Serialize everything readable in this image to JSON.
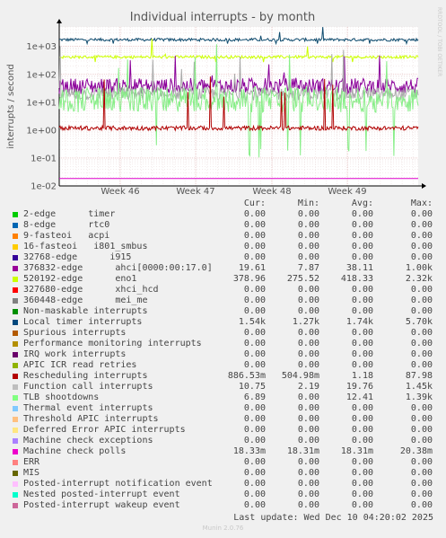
{
  "chart_data": {
    "type": "line",
    "title": "Individual interrupts - by month",
    "ylabel": "interrupts / second",
    "yscale": "log",
    "ylim": [
      0.01,
      5000
    ],
    "ytick_labels": [
      "1e+03",
      "1e+02",
      "1e+01",
      "1e+00",
      "1e-01",
      "1e-02"
    ],
    "yticks": [
      1000,
      100,
      10,
      1,
      0.1,
      0.01
    ],
    "xtick_labels": [
      "Week 46",
      "Week 47",
      "Week 48",
      "Week 49"
    ],
    "grid": true,
    "side_label": "RRDTOOL / TOBI OETIKER",
    "series": [
      {
        "name": "Local timer interrupts",
        "color": "#0f4b6e",
        "level": 1740,
        "min": 1270,
        "max": 5700,
        "noise": 0.04
      },
      {
        "name": "520192-edge      eno1",
        "color": "#ccff00",
        "level": 418,
        "min": 275,
        "max": 2320,
        "noise": 0.04
      },
      {
        "name": "376832-edge      ahci[0000:00:17.0]",
        "color": "#8a0099",
        "level": 38,
        "min": 7.87,
        "max": 1000,
        "noise": 0.22
      },
      {
        "name": "Function call interrupts",
        "color": "#aaaaaa",
        "level": 19.8,
        "min": 2.19,
        "max": 1450,
        "noise": 0.18
      },
      {
        "name": "TLB shootdowns",
        "color": "#88ee88",
        "level": 12.4,
        "min": 0.1,
        "max": 1390,
        "noise": 0.35
      },
      {
        "name": "Rescheduling interrupts",
        "color": "#b00000",
        "level": 1.18,
        "min": 0.505,
        "max": 88,
        "noise": 0.06
      },
      {
        "name": "Machine check polls",
        "color": "#dd00cc",
        "level": 0.0183,
        "min": 0.0183,
        "max": 0.0204,
        "noise": 0.0
      }
    ],
    "legend_headers": [
      "Cur:",
      "Min:",
      "Avg:",
      "Max:"
    ],
    "legend": [
      {
        "color": "#00cc00",
        "name": "2-edge      timer",
        "cur": "0.00",
        "min": "0.00",
        "avg": "0.00",
        "max": "0.00"
      },
      {
        "color": "#0066b3",
        "name": "8-edge      rtc0",
        "cur": "0.00",
        "min": "0.00",
        "avg": "0.00",
        "max": "0.00"
      },
      {
        "color": "#ff8000",
        "name": "9-fasteoi   acpi",
        "cur": "0.00",
        "min": "0.00",
        "avg": "0.00",
        "max": "0.00"
      },
      {
        "color": "#ffcc00",
        "name": "16-fasteoi   i801_smbus",
        "cur": "0.00",
        "min": "0.00",
        "avg": "0.00",
        "max": "0.00"
      },
      {
        "color": "#330099",
        "name": "32768-edge      i915",
        "cur": "0.00",
        "min": "0.00",
        "avg": "0.00",
        "max": "0.00"
      },
      {
        "color": "#990099",
        "name": "376832-edge      ahci[0000:00:17.0]",
        "cur": "19.61",
        "min": "7.87",
        "avg": "38.11",
        "max": "1.00k"
      },
      {
        "color": "#ccff00",
        "name": "520192-edge      eno1",
        "cur": "378.96",
        "min": "275.52",
        "avg": "418.33",
        "max": "2.32k"
      },
      {
        "color": "#ff0000",
        "name": "327680-edge      xhci_hcd",
        "cur": "0.00",
        "min": "0.00",
        "avg": "0.00",
        "max": "0.00"
      },
      {
        "color": "#808080",
        "name": "360448-edge      mei_me",
        "cur": "0.00",
        "min": "0.00",
        "avg": "0.00",
        "max": "0.00"
      },
      {
        "color": "#008f00",
        "name": "Non-maskable interrupts",
        "cur": "0.00",
        "min": "0.00",
        "avg": "0.00",
        "max": "0.00"
      },
      {
        "color": "#00487d",
        "name": "Local timer interrupts",
        "cur": "1.54k",
        "min": "1.27k",
        "avg": "1.74k",
        "max": "5.70k"
      },
      {
        "color": "#b35a00",
        "name": "Spurious interrupts",
        "cur": "0.00",
        "min": "0.00",
        "avg": "0.00",
        "max": "0.00"
      },
      {
        "color": "#b38f00",
        "name": "Performance monitoring interrupts",
        "cur": "0.00",
        "min": "0.00",
        "avg": "0.00",
        "max": "0.00"
      },
      {
        "color": "#6b006b",
        "name": "IRQ work interrupts",
        "cur": "0.00",
        "min": "0.00",
        "avg": "0.00",
        "max": "0.00"
      },
      {
        "color": "#8fb300",
        "name": "APIC ICR read retries",
        "cur": "0.00",
        "min": "0.00",
        "avg": "0.00",
        "max": "0.00"
      },
      {
        "color": "#b30000",
        "name": "Rescheduling interrupts",
        "cur": "886.53m",
        "min": "504.98m",
        "avg": "1.18",
        "max": "87.98"
      },
      {
        "color": "#bebebe",
        "name": "Function call interrupts",
        "cur": "10.75",
        "min": "2.19",
        "avg": "19.76",
        "max": "1.45k"
      },
      {
        "color": "#80ff80",
        "name": "TLB shootdowns",
        "cur": "6.89",
        "min": "0.00",
        "avg": "12.41",
        "max": "1.39k"
      },
      {
        "color": "#80c9ff",
        "name": "Thermal event interrupts",
        "cur": "0.00",
        "min": "0.00",
        "avg": "0.00",
        "max": "0.00"
      },
      {
        "color": "#ffc080",
        "name": "Threshold APIC interrupts",
        "cur": "0.00",
        "min": "0.00",
        "avg": "0.00",
        "max": "0.00"
      },
      {
        "color": "#ffe680",
        "name": "Deferred Error APIC interrupts",
        "cur": "0.00",
        "min": "0.00",
        "avg": "0.00",
        "max": "0.00"
      },
      {
        "color": "#aa80ff",
        "name": "Machine check exceptions",
        "cur": "0.00",
        "min": "0.00",
        "avg": "0.00",
        "max": "0.00"
      },
      {
        "color": "#ee00cc",
        "name": "Machine check polls",
        "cur": "18.33m",
        "min": "18.31m",
        "avg": "18.31m",
        "max": "20.38m"
      },
      {
        "color": "#ff8080",
        "name": "ERR",
        "cur": "0.00",
        "min": "0.00",
        "avg": "0.00",
        "max": "0.00"
      },
      {
        "color": "#666600",
        "name": "MIS",
        "cur": "0.00",
        "min": "0.00",
        "avg": "0.00",
        "max": "0.00"
      },
      {
        "color": "#ffbfff",
        "name": "Posted-interrupt notification event",
        "cur": "0.00",
        "min": "0.00",
        "avg": "0.00",
        "max": "0.00"
      },
      {
        "color": "#00ffcc",
        "name": "Nested posted-interrupt event",
        "cur": "0.00",
        "min": "0.00",
        "avg": "0.00",
        "max": "0.00"
      },
      {
        "color": "#cc6699",
        "name": "Posted-interrupt wakeup event",
        "cur": "0.00",
        "min": "0.00",
        "avg": "0.00",
        "max": "0.00"
      }
    ]
  },
  "footer": {
    "last_update": "Last update: Wed Dec 10 04:20:02 2025",
    "credit": "Munin 2.0.76"
  }
}
